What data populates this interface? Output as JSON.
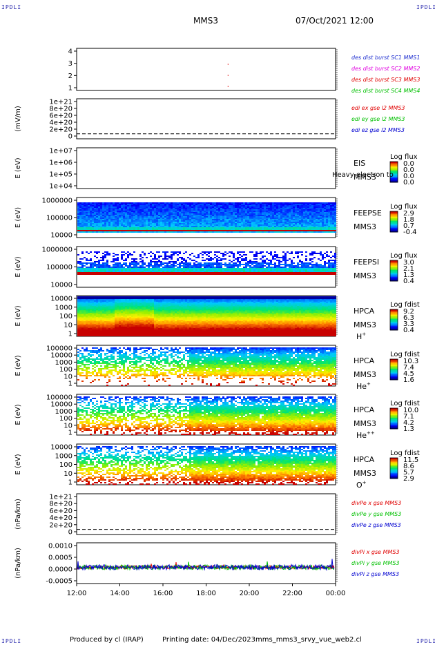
{
  "header": {
    "corner_label": "IPDLI",
    "title": "MMS3",
    "datetime": "07/Oct/2021 12:00"
  },
  "footer": {
    "produced_by": "Produced by cl (IRAP)",
    "printing_date": "Printing date: 04/Dec/2023",
    "filename": "mms_mms3_srvy_vue_web2.cl"
  },
  "colors": {
    "mms1": "#1f2fd0",
    "mms2": "#e000e0",
    "mms3": "#e00000",
    "mms4": "#00c000",
    "red": "#e00000",
    "green": "#00c000",
    "blue": "#0000d0"
  },
  "chart_data": [
    {
      "id": "burst",
      "type": "scatter",
      "ylim": [
        0.6,
        4.4
      ],
      "y_ticks": [
        "4",
        "3",
        "2",
        "1"
      ],
      "legend": [
        {
          "label": "des dist burst SC1 MMS1",
          "color": "#1f2fd0"
        },
        {
          "label": "des dist burst SC2 MMS2",
          "color": "#e000e0"
        },
        {
          "label": "des dist burst SC3 MMS3",
          "color": "#e00000"
        },
        {
          "label": "des dist burst SC4 MMS4",
          "color": "#00c000"
        }
      ],
      "points": [
        {
          "x": 19.0,
          "y": 3
        },
        {
          "x": 19.0,
          "y": 2
        },
        {
          "x": 19.0,
          "y": 1
        }
      ]
    },
    {
      "id": "edi",
      "type": "line",
      "ylabel": "(mV/m)",
      "ylim": [
        -1.5e+20,
        1.05e+21
      ],
      "y_ticks": [
        "1e+21",
        "8e+20",
        "6e+20",
        "4e+20",
        "2e+20",
        "0"
      ],
      "legend": [
        {
          "label": "edi ex gse l2 MMS3",
          "color": "#e00000"
        },
        {
          "label": "edi ey gse l2 MMS3",
          "color": "#00c000"
        },
        {
          "label": "edi ez gse l2 MMS3",
          "color": "#0000d0"
        }
      ],
      "series": []
    },
    {
      "id": "eis",
      "type": "heatmap",
      "ylabel": "E (eV)",
      "y_ticks": [
        "1e+07",
        "1e+06",
        "1e+05",
        "1e+04"
      ],
      "instrument": [
        "EIS",
        "MMS3"
      ],
      "overlay_text": "Heavy electron to",
      "colorbar": {
        "title": "Log flux",
        "ticks": [
          "0.0",
          "0.0",
          "0.0",
          "0.0"
        ]
      }
    },
    {
      "id": "feepse",
      "type": "heatmap",
      "ylabel": "E (eV)",
      "y_ticks": [
        "1000000",
        "100000",
        "10000"
      ],
      "instrument": [
        "FEEPSE",
        "MMS3"
      ],
      "colorbar": {
        "title": "Log flux",
        "ticks": [
          "2.9",
          "1.8",
          "0.7",
          "-0.4"
        ]
      }
    },
    {
      "id": "feepsi",
      "type": "heatmap",
      "ylabel": "E (eV)",
      "y_ticks": [
        "1000000",
        "100000",
        "10000"
      ],
      "instrument": [
        "FEEPSI",
        "MMS3"
      ],
      "colorbar": {
        "title": "Log flux",
        "ticks": [
          "3.0",
          "2.1",
          "1.3",
          "0.4"
        ]
      }
    },
    {
      "id": "hpca-h",
      "type": "heatmap",
      "ylabel": "E (eV)",
      "y_ticks": [
        "10000",
        "1000",
        "100",
        "10",
        "1"
      ],
      "instrument": [
        "HPCA",
        "MMS3"
      ],
      "species": "H",
      "charge": "+",
      "colorbar": {
        "title": "Log fdist",
        "ticks": [
          "9.2",
          "6.3",
          "3.3",
          "0.4"
        ]
      }
    },
    {
      "id": "hpca-he1",
      "type": "heatmap",
      "ylabel": "E (eV)",
      "y_ticks": [
        "100000",
        "10000",
        "1000",
        "100",
        "10",
        "1"
      ],
      "instrument": [
        "HPCA",
        "MMS3"
      ],
      "species": "He",
      "charge": "+",
      "colorbar": {
        "title": "Log fdist",
        "ticks": [
          "10.3",
          "7.4",
          "4.5",
          "1.6"
        ]
      }
    },
    {
      "id": "hpca-he2",
      "type": "heatmap",
      "ylabel": "E (eV)",
      "y_ticks": [
        "100000",
        "10000",
        "1000",
        "100",
        "10",
        "1"
      ],
      "instrument": [
        "HPCA",
        "MMS3"
      ],
      "species": "He",
      "charge": "++",
      "colorbar": {
        "title": "Log fdist",
        "ticks": [
          "10.0",
          "7.1",
          "4.2",
          "1.3"
        ]
      }
    },
    {
      "id": "hpca-o",
      "type": "heatmap",
      "ylabel": "E (eV)",
      "y_ticks": [
        "10000",
        "1000",
        "100",
        "10",
        "1"
      ],
      "instrument": [
        "HPCA",
        "MMS3"
      ],
      "species": "O",
      "charge": "+",
      "colorbar": {
        "title": "Log fdist",
        "ticks": [
          "11.5",
          "8.6",
          "5.7",
          "2.9"
        ]
      }
    },
    {
      "id": "divpe",
      "type": "line",
      "ylabel": "(nPa/km)",
      "ylim": [
        -1.5e+20,
        1.05e+21
      ],
      "y_ticks": [
        "1e+21",
        "8e+20",
        "6e+20",
        "4e+20",
        "2e+20",
        "0"
      ],
      "legend": [
        {
          "label": "divPe x gse MMS3",
          "color": "#e00000"
        },
        {
          "label": "divPe y gse MMS3",
          "color": "#00c000"
        },
        {
          "label": "divPe z gse MMS3",
          "color": "#0000d0"
        }
      ],
      "series": []
    },
    {
      "id": "divpi",
      "type": "line",
      "ylabel": "(nPa/km)",
      "ylim": [
        -0.0008,
        0.0012
      ],
      "y_ticks": [
        "0.0010",
        "0.0005",
        "0.0000",
        "-0.0005"
      ],
      "legend": [
        {
          "label": "divPi x gse MMS3",
          "color": "#e00000"
        },
        {
          "label": "divPi y gse MMS3",
          "color": "#00c000"
        },
        {
          "label": "divPi z gse MMS3",
          "color": "#0000d0"
        }
      ],
      "series": [
        {
          "name": "divPi x gse MMS3",
          "color": "#e00000",
          "noise": 8e-05
        },
        {
          "name": "divPi y gse MMS3",
          "color": "#00c000",
          "noise": 0.00012
        },
        {
          "name": "divPi z gse MMS3",
          "color": "#0000d0",
          "noise": 0.00013
        }
      ]
    }
  ],
  "x_axis": {
    "range_hours": [
      12,
      24
    ],
    "tick_labels": [
      "12:00",
      "14:00",
      "16:00",
      "18:00",
      "20:00",
      "22:00",
      "00:00"
    ]
  }
}
